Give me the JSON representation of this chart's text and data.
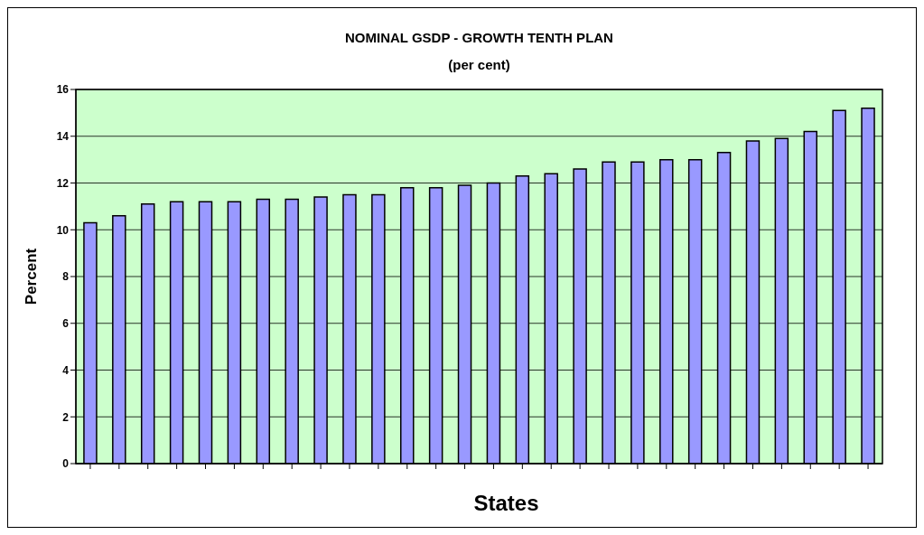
{
  "chart_data": {
    "type": "bar",
    "title": "NOMINAL GSDP - GROWTH TENTH PLAN",
    "subtitle": "(per cent)",
    "xlabel": "States",
    "ylabel": "Percent",
    "categories": [
      null,
      null,
      null,
      null,
      null,
      null,
      null,
      null,
      null,
      null,
      null,
      null,
      null,
      null,
      null,
      null,
      null,
      null,
      null,
      null,
      null,
      null,
      null,
      null,
      null,
      null,
      null,
      null
    ],
    "values": [
      10.3,
      10.6,
      11.1,
      11.2,
      11.2,
      11.2,
      11.3,
      11.3,
      11.4,
      11.5,
      11.5,
      11.8,
      11.8,
      11.9,
      12.0,
      12.3,
      12.4,
      12.6,
      12.9,
      12.9,
      13.0,
      13.0,
      13.3,
      13.8,
      13.9,
      14.2,
      15.1,
      15.2
    ],
    "color": "#9999ff",
    "ylim": [
      0,
      16
    ],
    "yticks": [
      0,
      2,
      4,
      6,
      8,
      10,
      12,
      14,
      16
    ],
    "grid": "y"
  }
}
